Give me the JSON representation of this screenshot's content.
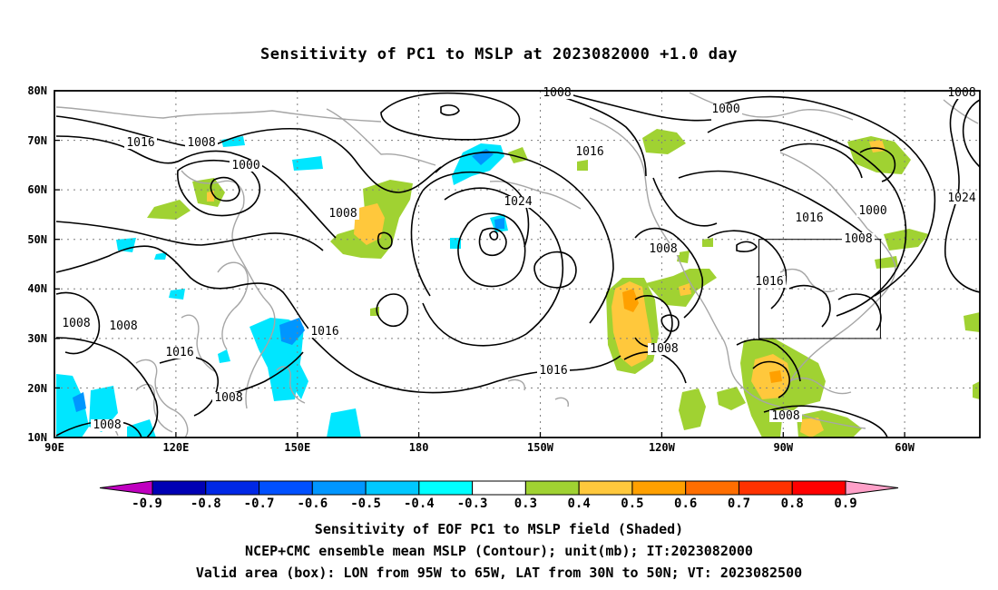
{
  "title": "Sensitivity of PC1 to MSLP at 2023082000 +1.0 day",
  "map": {
    "lat_labels": [
      "80N",
      "70N",
      "60N",
      "50N",
      "40N",
      "30N",
      "20N",
      "10N"
    ],
    "lon_labels": [
      "90E",
      "120E",
      "150E",
      "180",
      "150W",
      "120W",
      "90W",
      "60W"
    ],
    "valid_box": {
      "lon_from": "95W",
      "lon_to": "65W",
      "lat_from": "30N",
      "lat_to": "50N"
    },
    "contour_labels": [
      "1008",
      "1016",
      "1008",
      "1000",
      "1008",
      "1016",
      "1024",
      "1000",
      "1016",
      "1000",
      "1008",
      "1016",
      "1024",
      "1008",
      "1016",
      "1008",
      "1008",
      "1016",
      "1008",
      "1008",
      "1008",
      "1008",
      "1016",
      "1008"
    ]
  },
  "colorbar": {
    "labels": [
      "-0.9",
      "-0.8",
      "-0.7",
      "-0.6",
      "-0.5",
      "-0.4",
      "-0.3",
      "0.3",
      "0.4",
      "0.5",
      "0.6",
      "0.7",
      "0.8",
      "0.9"
    ],
    "colors": [
      "#c000c0",
      "#0000b4",
      "#0028e6",
      "#0050ff",
      "#0096ff",
      "#00c8ff",
      "#00ffff",
      "#ffffff",
      "#a0d232",
      "#ffc83c",
      "#ffa000",
      "#ff6e00",
      "#ff3200",
      "#ff0000",
      "#ffa0c8"
    ]
  },
  "captions": [
    "Sensitivity of EOF PC1 to MSLP field (Shaded)",
    "NCEP+CMC ensemble mean MSLP (Contour); unit(mb); IT:2023082000",
    "Valid area (box): LON from 95W to 65W, LAT from 30N to 50N; VT: 2023082500"
  ]
}
